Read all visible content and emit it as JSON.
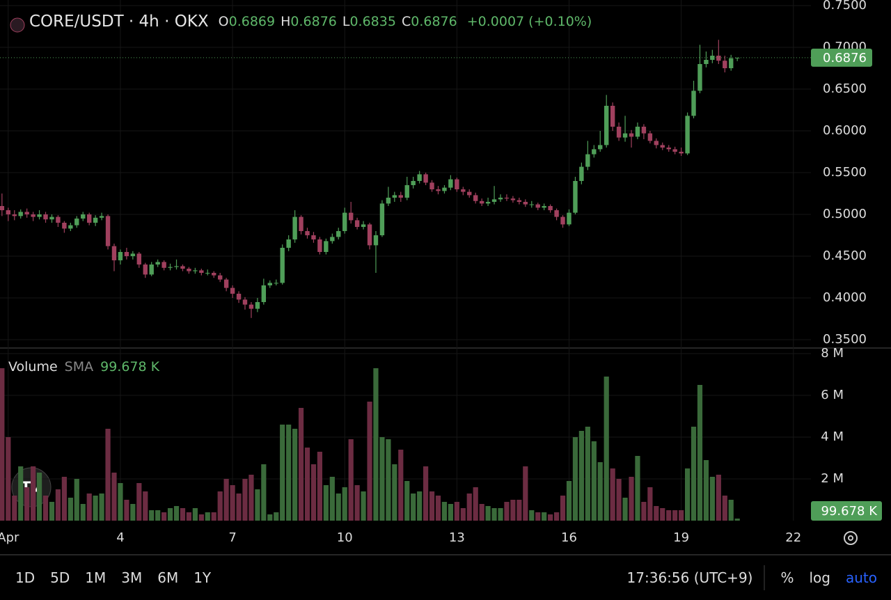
{
  "chart_data": {
    "type": "candlestick",
    "title": "CORE/USDT · 4h · OKX",
    "ohlc_header": [
      {
        "label": "O",
        "value": 0.6869
      },
      {
        "label": "H",
        "value": 0.6876
      },
      {
        "label": "L",
        "value": 0.6835
      },
      {
        "label": "C",
        "value": 0.6876
      }
    ],
    "change": "+0.0007 (+0.10%)",
    "last_price": 0.6876,
    "volume_title": "Volume",
    "volume_sma_title": "SMA",
    "volume_sma": {
      "value": 0.099678,
      "label": "99.678 K"
    },
    "up_color": "#4f9e58",
    "down_color": "#a0405e",
    "volume_up_color": "#3a6a3a",
    "volume_down_color": "#6c2c42",
    "x": [
      0.833,
      1,
      1.167,
      1.333,
      1.5,
      1.667,
      1.833,
      2,
      2.167,
      2.333,
      2.5,
      2.667,
      2.833,
      3,
      3.167,
      3.333,
      3.5,
      3.667,
      3.833,
      4,
      4.167,
      4.333,
      4.5,
      4.667,
      4.833,
      5,
      5.167,
      5.333,
      5.5,
      5.667,
      5.833,
      6,
      6.167,
      6.333,
      6.5,
      6.667,
      6.833,
      7,
      7.167,
      7.333,
      7.5,
      7.667,
      7.833,
      8,
      8.167,
      8.333,
      8.5,
      8.667,
      8.833,
      9,
      9.167,
      9.333,
      9.5,
      9.667,
      9.833,
      10,
      10.167,
      10.333,
      10.5,
      10.667,
      10.833,
      11,
      11.167,
      11.333,
      11.5,
      11.667,
      11.833,
      12,
      12.167,
      12.333,
      12.5,
      12.667,
      12.833,
      13,
      13.167,
      13.333,
      13.5,
      13.667,
      13.833,
      14,
      14.167,
      14.333,
      14.5,
      14.667,
      14.833,
      15,
      15.167,
      15.333,
      15.5,
      15.667,
      15.833,
      16,
      16.167,
      16.333,
      16.5,
      16.667,
      16.833,
      17,
      17.167,
      17.333,
      17.5,
      17.667,
      17.833,
      18,
      18.167,
      18.333,
      18.5,
      18.667,
      18.833,
      19,
      19.167,
      19.333,
      19.5,
      19.667,
      19.833,
      20,
      20.167,
      20.333,
      20.5
    ],
    "open": [
      0.51,
      0.505,
      0.5,
      0.498,
      0.503,
      0.5,
      0.497,
      0.5,
      0.494,
      0.497,
      0.49,
      0.483,
      0.487,
      0.495,
      0.5,
      0.49,
      0.496,
      0.498,
      0.462,
      0.445,
      0.455,
      0.45,
      0.453,
      0.44,
      0.428,
      0.44,
      0.443,
      0.436,
      0.437,
      0.438,
      0.435,
      0.432,
      0.433,
      0.43,
      0.43,
      0.427,
      0.422,
      0.412,
      0.405,
      0.398,
      0.392,
      0.387,
      0.395,
      0.415,
      0.418,
      0.418,
      0.46,
      0.47,
      0.497,
      0.48,
      0.475,
      0.47,
      0.455,
      0.468,
      0.473,
      0.48,
      0.502,
      0.493,
      0.485,
      0.488,
      0.463,
      0.475,
      0.513,
      0.52,
      0.523,
      0.52,
      0.535,
      0.54,
      0.548,
      0.538,
      0.53,
      0.528,
      0.532,
      0.542,
      0.53,
      0.527,
      0.523,
      0.516,
      0.513,
      0.515,
      0.518,
      0.52,
      0.519,
      0.517,
      0.515,
      0.512,
      0.512,
      0.508,
      0.51,
      0.505,
      0.497,
      0.488,
      0.502,
      0.54,
      0.557,
      0.572,
      0.578,
      0.583,
      0.63,
      0.605,
      0.592,
      0.597,
      0.593,
      0.605,
      0.597,
      0.588,
      0.583,
      0.58,
      0.578,
      0.575,
      0.573,
      0.618,
      0.648,
      0.68,
      0.685,
      0.69,
      0.684,
      0.675,
      0.6869
    ],
    "high": [
      0.525,
      0.508,
      0.505,
      0.506,
      0.507,
      0.503,
      0.505,
      0.503,
      0.5,
      0.499,
      0.492,
      0.49,
      0.498,
      0.503,
      0.502,
      0.499,
      0.502,
      0.5,
      0.465,
      0.458,
      0.46,
      0.456,
      0.455,
      0.442,
      0.443,
      0.446,
      0.445,
      0.441,
      0.446,
      0.44,
      0.437,
      0.436,
      0.435,
      0.434,
      0.432,
      0.43,
      0.424,
      0.415,
      0.408,
      0.401,
      0.395,
      0.4,
      0.423,
      0.421,
      0.422,
      0.464,
      0.475,
      0.505,
      0.499,
      0.484,
      0.479,
      0.473,
      0.471,
      0.477,
      0.484,
      0.508,
      0.515,
      0.496,
      0.492,
      0.49,
      0.48,
      0.517,
      0.533,
      0.527,
      0.527,
      0.545,
      0.545,
      0.552,
      0.55,
      0.541,
      0.534,
      0.535,
      0.547,
      0.544,
      0.533,
      0.53,
      0.526,
      0.519,
      0.52,
      0.534,
      0.524,
      0.524,
      0.522,
      0.52,
      0.518,
      0.516,
      0.514,
      0.513,
      0.512,
      0.507,
      0.499,
      0.506,
      0.545,
      0.562,
      0.588,
      0.583,
      0.6,
      0.643,
      0.634,
      0.61,
      0.618,
      0.601,
      0.61,
      0.608,
      0.6,
      0.591,
      0.586,
      0.583,
      0.581,
      0.58,
      0.622,
      0.66,
      0.703,
      0.695,
      0.697,
      0.709,
      0.69,
      0.691,
      0.6876
    ],
    "low": [
      0.498,
      0.492,
      0.493,
      0.495,
      0.496,
      0.492,
      0.494,
      0.49,
      0.49,
      0.485,
      0.478,
      0.48,
      0.484,
      0.492,
      0.487,
      0.486,
      0.493,
      0.458,
      0.432,
      0.44,
      0.446,
      0.446,
      0.436,
      0.424,
      0.426,
      0.437,
      0.433,
      0.433,
      0.434,
      0.432,
      0.429,
      0.429,
      0.427,
      0.427,
      0.424,
      0.419,
      0.408,
      0.4,
      0.394,
      0.386,
      0.376,
      0.383,
      0.392,
      0.412,
      0.415,
      0.416,
      0.456,
      0.466,
      0.476,
      0.471,
      0.466,
      0.452,
      0.452,
      0.465,
      0.47,
      0.477,
      0.489,
      0.482,
      0.482,
      0.458,
      0.43,
      0.473,
      0.51,
      0.515,
      0.515,
      0.517,
      0.531,
      0.537,
      0.535,
      0.527,
      0.524,
      0.525,
      0.529,
      0.527,
      0.523,
      0.52,
      0.513,
      0.51,
      0.51,
      0.512,
      0.515,
      0.516,
      0.514,
      0.512,
      0.509,
      0.508,
      0.505,
      0.505,
      0.502,
      0.493,
      0.484,
      0.486,
      0.5,
      0.536,
      0.553,
      0.568,
      0.575,
      0.58,
      0.6,
      0.588,
      0.587,
      0.58,
      0.59,
      0.59,
      0.585,
      0.579,
      0.577,
      0.575,
      0.572,
      0.57,
      0.571,
      0.615,
      0.645,
      0.676,
      0.681,
      0.68,
      0.67,
      0.672,
      0.6835
    ],
    "close": [
      0.505,
      0.5,
      0.498,
      0.503,
      0.5,
      0.497,
      0.5,
      0.494,
      0.497,
      0.49,
      0.483,
      0.487,
      0.495,
      0.5,
      0.49,
      0.496,
      0.498,
      0.462,
      0.445,
      0.455,
      0.45,
      0.453,
      0.44,
      0.428,
      0.44,
      0.443,
      0.436,
      0.437,
      0.438,
      0.435,
      0.432,
      0.433,
      0.43,
      0.43,
      0.427,
      0.422,
      0.412,
      0.405,
      0.398,
      0.392,
      0.387,
      0.395,
      0.415,
      0.418,
      0.418,
      0.46,
      0.47,
      0.497,
      0.48,
      0.475,
      0.47,
      0.455,
      0.468,
      0.473,
      0.48,
      0.502,
      0.493,
      0.485,
      0.488,
      0.463,
      0.475,
      0.513,
      0.52,
      0.523,
      0.52,
      0.535,
      0.54,
      0.548,
      0.538,
      0.53,
      0.528,
      0.532,
      0.542,
      0.53,
      0.527,
      0.523,
      0.516,
      0.513,
      0.515,
      0.518,
      0.52,
      0.519,
      0.517,
      0.515,
      0.512,
      0.512,
      0.508,
      0.51,
      0.505,
      0.497,
      0.488,
      0.502,
      0.54,
      0.557,
      0.572,
      0.578,
      0.583,
      0.63,
      0.605,
      0.592,
      0.597,
      0.593,
      0.605,
      0.597,
      0.588,
      0.583,
      0.58,
      0.578,
      0.575,
      0.573,
      0.618,
      0.648,
      0.68,
      0.685,
      0.69,
      0.684,
      0.675,
      0.6869,
      0.6876
    ],
    "volume": [
      7.3,
      4.0,
      1.2,
      2.6,
      1.6,
      2.6,
      2.3,
      1.2,
      0.9,
      1.5,
      2.1,
      1.1,
      2.0,
      0.8,
      1.3,
      1.2,
      1.3,
      4.4,
      2.3,
      1.8,
      1.0,
      0.8,
      1.8,
      1.4,
      0.5,
      0.5,
      0.4,
      0.6,
      0.7,
      0.6,
      0.4,
      0.6,
      0.3,
      0.4,
      0.4,
      1.4,
      2.0,
      1.7,
      1.3,
      2.0,
      2.2,
      1.5,
      2.7,
      0.3,
      0.4,
      4.6,
      4.6,
      4.4,
      5.4,
      3.5,
      2.7,
      3.3,
      1.7,
      2.1,
      1.3,
      1.6,
      3.9,
      1.7,
      1.4,
      5.7,
      7.3,
      4.0,
      3.9,
      2.7,
      3.4,
      1.9,
      1.3,
      1.4,
      2.6,
      1.4,
      1.2,
      0.9,
      0.8,
      0.9,
      0.6,
      1.3,
      1.6,
      0.8,
      0.7,
      0.6,
      0.6,
      0.9,
      1.0,
      1.0,
      2.6,
      0.5,
      0.4,
      0.4,
      0.3,
      0.4,
      1.2,
      1.9,
      4.0,
      4.3,
      4.5,
      3.8,
      2.8,
      6.9,
      2.5,
      2.0,
      1.1,
      2.1,
      3.1,
      0.9,
      1.6,
      0.7,
      0.6,
      0.5,
      0.5,
      0.5,
      2.5,
      4.5,
      6.5,
      2.9,
      2.1,
      2.2,
      1.2,
      1.0,
      0.099678
    ],
    "xlim": [
      0.78,
      22.47
    ],
    "xticks": [
      {
        "value": 1,
        "label": "Apr"
      },
      4,
      7,
      10,
      13,
      16,
      19,
      22
    ],
    "ylim": [
      0.35,
      0.75
    ],
    "yticks": [
      {
        "value": 0.35,
        "label": "0.3500"
      },
      {
        "value": 0.4,
        "label": "0.4000"
      },
      {
        "value": 0.45,
        "label": "0.4500"
      },
      {
        "value": 0.5,
        "label": "0.5000"
      },
      {
        "value": 0.55,
        "label": "0.5500"
      },
      {
        "value": 0.6,
        "label": "0.6000"
      },
      {
        "value": 0.65,
        "label": "0.6500"
      },
      {
        "value": 0.7,
        "label": "0.7000"
      },
      {
        "value": 0.75,
        "label": "0.7500"
      }
    ],
    "y2lim": [
      0,
      8
    ],
    "y2ticks": [
      {
        "value": 2,
        "label": "2 M"
      },
      {
        "value": 4,
        "label": "4 M"
      },
      {
        "value": 6,
        "label": "6 M"
      },
      {
        "value": 8,
        "label": "8 M"
      }
    ],
    "grid": true
  },
  "toolbar": {
    "ranges": [
      "1D",
      "5D",
      "1M",
      "3M",
      "6M",
      "1Y"
    ],
    "time": "17:36:56 (UTC+9)",
    "options": [
      "%",
      "log",
      "auto"
    ]
  }
}
